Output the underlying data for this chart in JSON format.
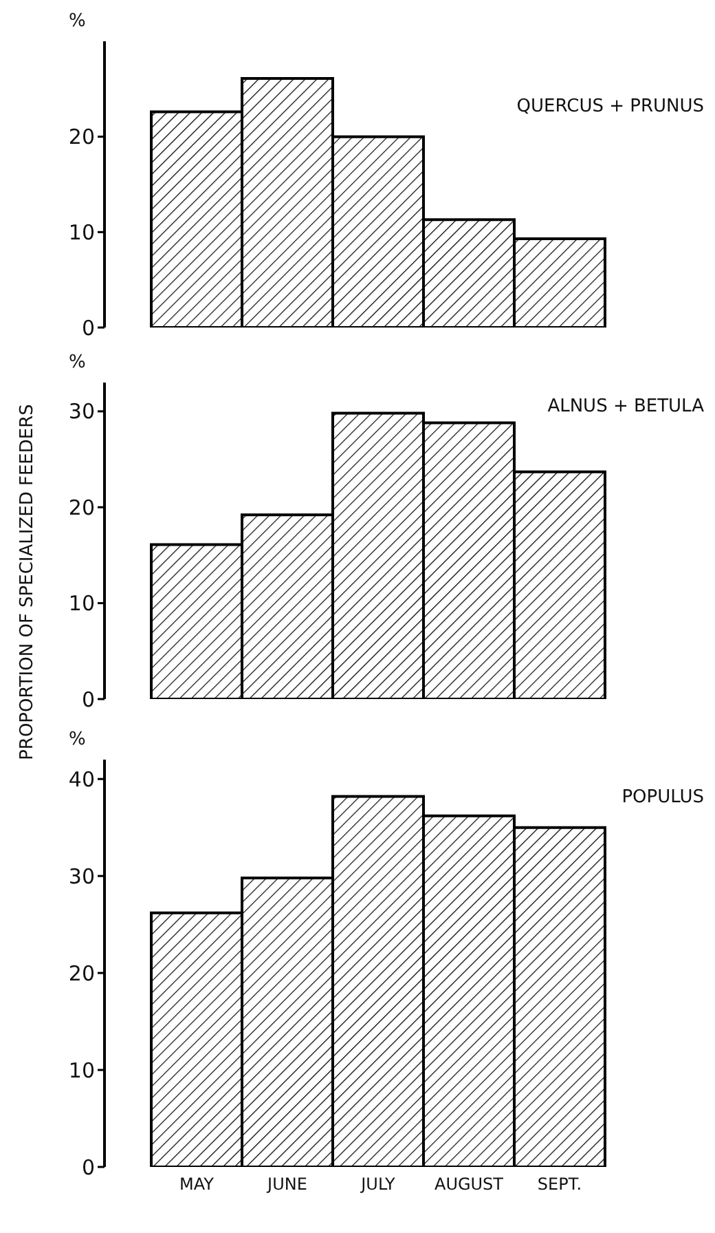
{
  "chart_data": [
    {
      "type": "bar",
      "categories": [
        null,
        null,
        null,
        null,
        null
      ],
      "series": [
        {
          "name": "QUERCUS + PRUNUS",
          "color": "#000000",
          "values": [
            22.6,
            26.1,
            20,
            11.3,
            9.3
          ]
        }
      ],
      "ylim": [
        0,
        30
      ],
      "yticks": [
        0,
        10,
        20
      ],
      "tick_labels": "y",
      "annotations": [
        "%"
      ],
      "legend": false,
      "grid": false
    },
    {
      "type": "bar",
      "categories": [
        null,
        null,
        null,
        null,
        null
      ],
      "series": [
        {
          "name": "ALNUS + BETULA",
          "color": "#000000",
          "values": [
            16.1,
            19.2,
            29.8,
            28.8,
            23.7
          ]
        }
      ],
      "ylim": [
        0,
        33
      ],
      "yticks": [
        0,
        10,
        20,
        30
      ],
      "tick_labels": "y",
      "ylabel": "PROPORTION OF SPECIALIZED FEEDERS",
      "annotations": [
        "%"
      ],
      "legend": false,
      "grid": false
    },
    {
      "type": "bar",
      "categories": [
        "MAY",
        "JUNE",
        "JULY",
        "AUGUST",
        "SEPT."
      ],
      "series": [
        {
          "name": "POPULUS",
          "color": "#000000",
          "values": [
            26.2,
            29.8,
            38.2,
            36.2,
            35
          ]
        }
      ],
      "ylim": [
        0,
        42
      ],
      "yticks": [
        0,
        10,
        20,
        30,
        40
      ],
      "annotations": [
        "%"
      ],
      "legend": false,
      "grid": false
    }
  ]
}
